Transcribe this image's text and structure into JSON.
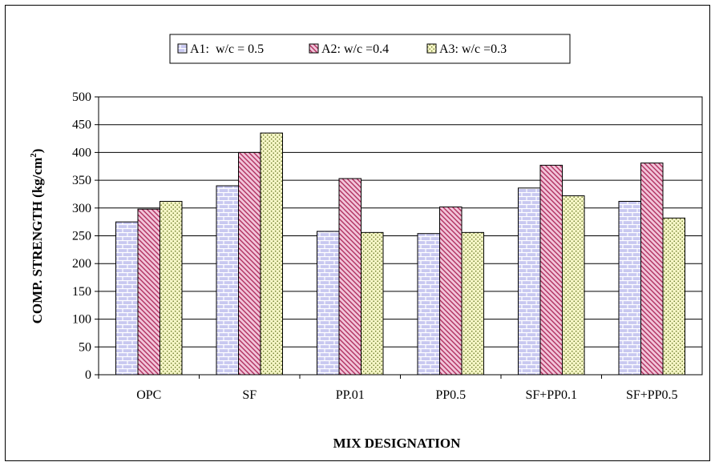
{
  "chart_data": {
    "type": "bar",
    "categories": [
      "OPC",
      "SF",
      "PP.01",
      "PP0.5",
      "SF+PP0.1",
      "SF+PP0.5"
    ],
    "series": [
      {
        "name": "A1:  w/c = 0.5",
        "values": [
          275,
          340,
          258,
          254,
          336,
          312
        ],
        "color": "#c8c8f0",
        "pattern": "brick"
      },
      {
        "name": "A2: w/c =0.4",
        "values": [
          298,
          400,
          353,
          302,
          377,
          381
        ],
        "color": "#f0c0d8",
        "pattern": "diagonal"
      },
      {
        "name": "A3: w/c =0.3",
        "values": [
          312,
          435,
          256,
          256,
          322,
          282
        ],
        "color": "#f5f5c0",
        "pattern": "dots"
      }
    ],
    "xlabel": "MIX DESIGNATION",
    "ylabel": "COMP. STRENGTH (kg/cm",
    "ylabel_sup": "2",
    "ylabel_close": ")",
    "ylim": [
      0,
      500
    ],
    "yticks": [
      0,
      50,
      100,
      150,
      200,
      250,
      300,
      350,
      400,
      450,
      500
    ],
    "grid": true,
    "legend_position": "top"
  }
}
